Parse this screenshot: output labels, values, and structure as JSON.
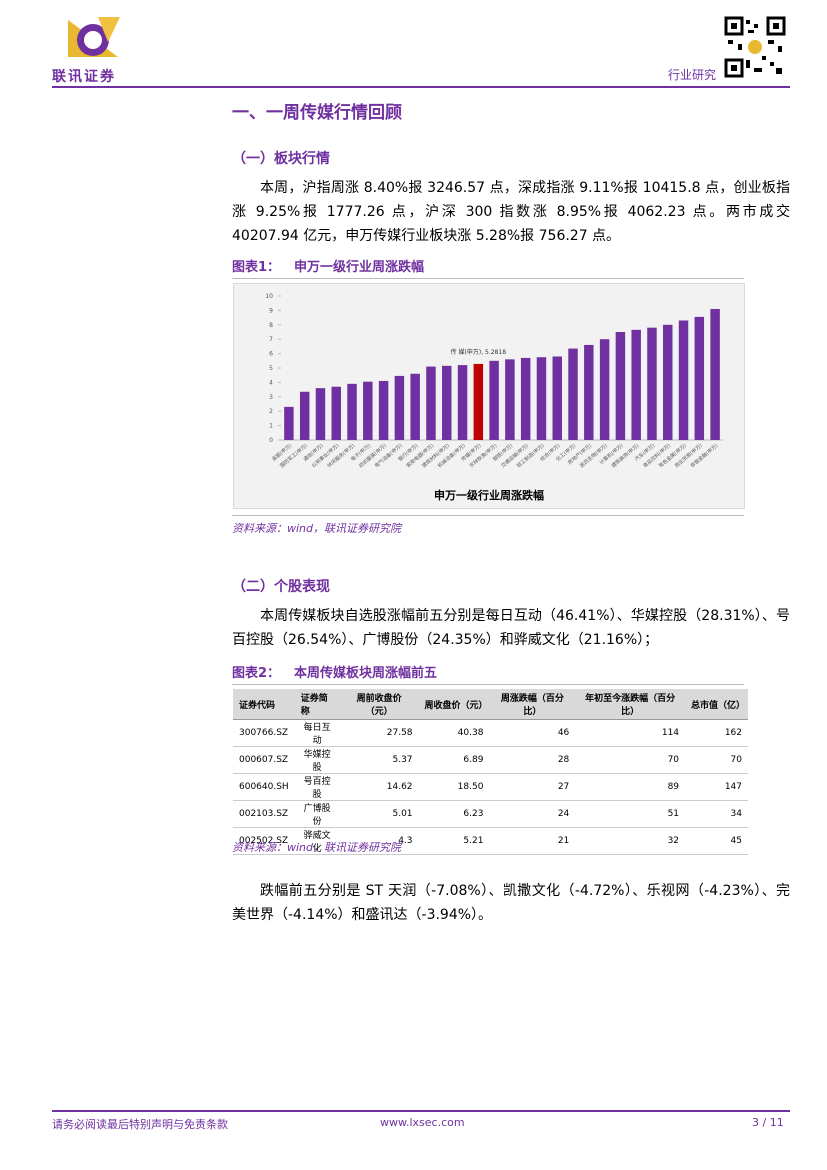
{
  "header": {
    "company": "联讯证券",
    "report_type": "行业研究"
  },
  "section_title": "一、一周传媒行情回顾",
  "subsection_1": "（一）板块行情",
  "paragraph_1": "本周，沪指周涨 8.40%报 3246.57 点，深成指涨 9.11%报 10415.8 点，创业板指涨 9.25%报 1777.26 点，沪深 300 指数涨 8.95%报 4062.23 点。两市成交 40207.94 亿元，申万传媒行业板块涨 5.28%报 756.27 点。",
  "figure_1": {
    "label": "图表1：",
    "title": "申万一级行业周涨跌幅",
    "source": "资料来源：wind，联讯证券研究院"
  },
  "chart_data": {
    "type": "bar",
    "title": "申万一级行业周涨跌幅",
    "categories": [
      "采掘(申万)",
      "国防军工(申万)",
      "通信(申万)",
      "公用事业(申万)",
      "休闲服务(申万)",
      "电子(申万)",
      "纺织服装(申万)",
      "电气设备(申万)",
      "银行(申万)",
      "家用电器(申万)",
      "建筑材料(申万)",
      "机械设备(申万)",
      "传媒(申万)",
      "农林牧渔(申万)",
      "钢铁(申万)",
      "交通运输(申万)",
      "轻工制造(申万)",
      "综合(申万)",
      "化工(申万)",
      "房地产(申万)",
      "医药生物(申万)",
      "计算机(申万)",
      "建筑装饰(申万)",
      "汽车(申万)",
      "食品饮料(申万)",
      "有色金属(申万)",
      "商业贸易(申万)",
      "非银金融(申万)"
    ],
    "values": [
      2.3,
      3.35,
      3.6,
      3.7,
      3.9,
      4.05,
      4.1,
      4.45,
      4.6,
      5.1,
      5.15,
      5.2,
      5.2818,
      5.5,
      5.6,
      5.7,
      5.75,
      5.8,
      6.35,
      6.6,
      7.0,
      7.5,
      7.65,
      7.8,
      8.0,
      8.3,
      8.55,
      9.1
    ],
    "color": "#7030a0",
    "highlight": {
      "index": 12,
      "color": "#c00000",
      "label": "传 媒(申万), 5.2818"
    },
    "ylim": [
      0,
      10
    ],
    "yticks": [
      0,
      1,
      2,
      3,
      4,
      5,
      6,
      7,
      8,
      9,
      10
    ],
    "grid": false
  },
  "subsection_2": "（二）个股表现",
  "paragraph_2": "本周传媒板块自选股涨幅前五分别是每日互动（46.41%）、华媒控股（28.31%）、号百控股（26.54%）、广博股份（24.35%）和骅威文化（21.16%）；",
  "figure_2": {
    "label": "图表2：",
    "title": "本周传媒板块周涨幅前五",
    "source": "资料来源：wind，联讯证券研究院"
  },
  "table": {
    "header": [
      "证券代码",
      "证券简称",
      "周前收盘价（元）",
      "周收盘价（元）",
      "周涨跌幅（百分比）",
      "年初至今涨跌幅（百分比）",
      "总市值（亿）"
    ],
    "rows": [
      [
        "300766.SZ",
        "每日互动",
        "27.58",
        "40.38",
        "46",
        "114",
        "162"
      ],
      [
        "000607.SZ",
        "华媒控股",
        "5.37",
        "6.89",
        "28",
        "70",
        "70"
      ],
      [
        "600640.SH",
        "号百控股",
        "14.62",
        "18.50",
        "27",
        "89",
        "147"
      ],
      [
        "002103.SZ",
        "广博股份",
        "5.01",
        "6.23",
        "24",
        "51",
        "34"
      ],
      [
        "002502.SZ",
        "骅威文化",
        "4.3",
        "5.21",
        "21",
        "32",
        "45"
      ]
    ]
  },
  "paragraph_3": "跌幅前五分别是 ST 天润（-7.08%）、凯撒文化（-4.72%）、乐视网（-4.23%）、完美世界（-4.14%）和盛讯达（-3.94%）。",
  "footer": {
    "disclaimer": "请务必阅读最后特别声明与免责条款",
    "website": "www.lxsec.com",
    "page": "3 / 11"
  }
}
